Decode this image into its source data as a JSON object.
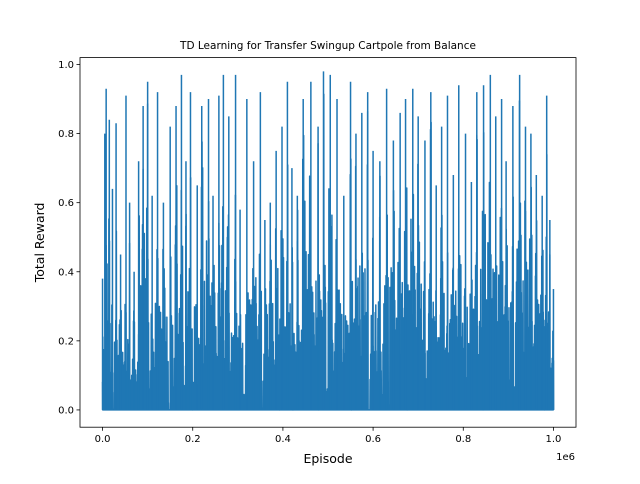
{
  "chart_data": {
    "type": "line",
    "title": "TD Learning for Transfer Swingup Cartpole from Balance",
    "xlabel": "Episode",
    "ylabel": "Total Reward",
    "x_offset_label": "1e6",
    "xlim": [
      -50000,
      1050000
    ],
    "ylim": [
      -0.05,
      1.02
    ],
    "xticks": [
      0.0,
      0.2,
      0.4,
      0.6,
      0.8,
      1.0
    ],
    "xtick_labels": [
      "0.0",
      "0.2",
      "0.4",
      "0.6",
      "0.8",
      "1.0"
    ],
    "yticks": [
      0.0,
      0.2,
      0.4,
      0.6,
      0.8,
      1.0
    ],
    "ytick_labels": [
      "0.0",
      "0.2",
      "0.4",
      "0.6",
      "0.8",
      "1.0"
    ],
    "grid": false,
    "legend": "none",
    "color": "#1f77b4",
    "series": [
      {
        "x_range": [
          0,
          1000000
        ],
        "baseline": 0.0,
        "envelope_peaks": [
          [
            0,
            0.38
          ],
          [
            5000,
            0.8
          ],
          [
            8000,
            0.93
          ],
          [
            15000,
            0.84
          ],
          [
            22000,
            0.64
          ],
          [
            30000,
            0.83
          ],
          [
            40000,
            0.45
          ],
          [
            52000,
            0.91
          ],
          [
            60000,
            0.6
          ],
          [
            70000,
            0.4
          ],
          [
            80000,
            0.72
          ],
          [
            90000,
            0.88
          ],
          [
            100000,
            0.95
          ],
          [
            110000,
            0.62
          ],
          [
            122000,
            0.92
          ],
          [
            135000,
            0.6
          ],
          [
            150000,
            0.82
          ],
          [
            163000,
            0.88
          ],
          [
            175000,
            0.97
          ],
          [
            185000,
            0.72
          ],
          [
            195000,
            0.92
          ],
          [
            210000,
            0.65
          ],
          [
            220000,
            0.88
          ],
          [
            235000,
            0.9
          ],
          [
            245000,
            0.62
          ],
          [
            258000,
            0.91
          ],
          [
            268000,
            0.97
          ],
          [
            280000,
            0.85
          ],
          [
            295000,
            0.97
          ],
          [
            305000,
            0.58
          ],
          [
            320000,
            0.9
          ],
          [
            335000,
            0.72
          ],
          [
            350000,
            0.92
          ],
          [
            360000,
            0.55
          ],
          [
            372000,
            0.6
          ],
          [
            385000,
            0.75
          ],
          [
            398000,
            0.82
          ],
          [
            410000,
            0.95
          ],
          [
            420000,
            0.7
          ],
          [
            432000,
            0.62
          ],
          [
            445000,
            0.9
          ],
          [
            462000,
            0.95
          ],
          [
            478000,
            0.82
          ],
          [
            490000,
            0.98
          ],
          [
            505000,
            0.97
          ],
          [
            520000,
            0.9
          ],
          [
            535000,
            0.62
          ],
          [
            550000,
            0.95
          ],
          [
            562000,
            0.8
          ],
          [
            575000,
            0.86
          ],
          [
            588000,
            0.92
          ],
          [
            600000,
            0.75
          ],
          [
            615000,
            0.72
          ],
          [
            630000,
            0.93
          ],
          [
            645000,
            0.78
          ],
          [
            660000,
            0.86
          ],
          [
            672000,
            0.9
          ],
          [
            688000,
            0.93
          ],
          [
            700000,
            0.85
          ],
          [
            715000,
            0.78
          ],
          [
            728000,
            0.92
          ],
          [
            740000,
            0.65
          ],
          [
            752000,
            0.82
          ],
          [
            765000,
            0.91
          ],
          [
            778000,
            0.68
          ],
          [
            790000,
            0.94
          ],
          [
            805000,
            0.8
          ],
          [
            818000,
            0.66
          ],
          [
            830000,
            0.92
          ],
          [
            845000,
            0.94
          ],
          [
            860000,
            0.97
          ],
          [
            872000,
            0.85
          ],
          [
            885000,
            0.9
          ],
          [
            895000,
            0.72
          ],
          [
            910000,
            0.88
          ],
          [
            925000,
            0.97
          ],
          [
            938000,
            0.82
          ],
          [
            950000,
            0.8
          ],
          [
            962000,
            0.68
          ],
          [
            975000,
            0.62
          ],
          [
            985000,
            0.91
          ],
          [
            992000,
            0.55
          ],
          [
            1000000,
            0.35
          ]
        ]
      }
    ]
  }
}
